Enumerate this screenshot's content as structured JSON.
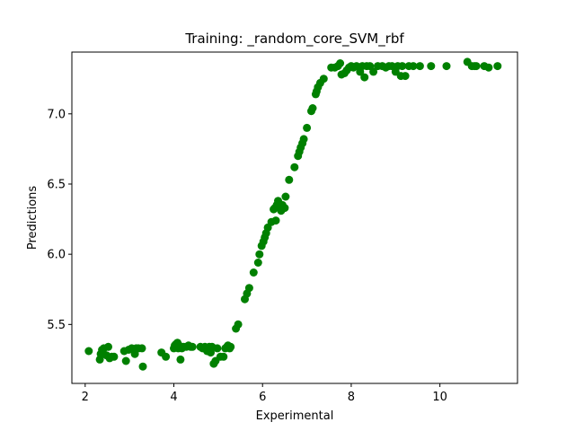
{
  "chart_data": {
    "type": "scatter",
    "title": "Training: _random_core_SVM_rbf",
    "xlabel": "Experimental",
    "ylabel": "Predictions",
    "xlim": [
      1.7,
      11.75
    ],
    "ylim": [
      5.08,
      7.44
    ],
    "xticks": [
      2,
      4,
      6,
      8,
      10
    ],
    "yticks": [
      5.5,
      6.0,
      6.5,
      7.0
    ],
    "xtick_labels": [
      "2",
      "4",
      "6",
      "8",
      "10"
    ],
    "ytick_labels": [
      "5.5",
      "6.0",
      "6.5",
      "7.0"
    ],
    "grid": false,
    "marker_color": "#008000",
    "series": [
      {
        "points": [
          [
            2.08,
            5.31
          ],
          [
            2.33,
            5.25
          ],
          [
            2.35,
            5.29
          ],
          [
            2.38,
            5.32
          ],
          [
            2.42,
            5.33
          ],
          [
            2.48,
            5.28
          ],
          [
            2.52,
            5.34
          ],
          [
            2.55,
            5.26
          ],
          [
            2.6,
            5.27
          ],
          [
            2.65,
            5.27
          ],
          [
            2.88,
            5.31
          ],
          [
            2.92,
            5.24
          ],
          [
            2.98,
            5.32
          ],
          [
            3.05,
            5.33
          ],
          [
            3.12,
            5.29
          ],
          [
            3.15,
            5.33
          ],
          [
            3.2,
            5.33
          ],
          [
            3.28,
            5.33
          ],
          [
            3.3,
            5.2
          ],
          [
            3.72,
            5.3
          ],
          [
            3.82,
            5.27
          ],
          [
            4.0,
            5.33
          ],
          [
            4.02,
            5.35
          ],
          [
            4.05,
            5.36
          ],
          [
            4.08,
            5.37
          ],
          [
            4.1,
            5.33
          ],
          [
            4.12,
            5.35
          ],
          [
            4.15,
            5.25
          ],
          [
            4.18,
            5.33
          ],
          [
            4.22,
            5.34
          ],
          [
            4.28,
            5.34
          ],
          [
            4.33,
            5.35
          ],
          [
            4.38,
            5.34
          ],
          [
            4.42,
            5.34
          ],
          [
            4.6,
            5.34
          ],
          [
            4.65,
            5.33
          ],
          [
            4.7,
            5.34
          ],
          [
            4.75,
            5.31
          ],
          [
            4.8,
            5.34
          ],
          [
            4.83,
            5.3
          ],
          [
            4.86,
            5.34
          ],
          [
            4.9,
            5.22
          ],
          [
            4.94,
            5.24
          ],
          [
            4.98,
            5.33
          ],
          [
            5.05,
            5.27
          ],
          [
            5.12,
            5.27
          ],
          [
            5.16,
            5.33
          ],
          [
            5.2,
            5.34
          ],
          [
            5.22,
            5.35
          ],
          [
            5.26,
            5.33
          ],
          [
            5.28,
            5.34
          ],
          [
            5.4,
            5.47
          ],
          [
            5.45,
            5.5
          ],
          [
            5.6,
            5.68
          ],
          [
            5.65,
            5.72
          ],
          [
            5.7,
            5.76
          ],
          [
            5.8,
            5.87
          ],
          [
            5.9,
            5.94
          ],
          [
            5.93,
            6.0
          ],
          [
            5.98,
            6.06
          ],
          [
            6.02,
            6.09
          ],
          [
            6.05,
            6.12
          ],
          [
            6.08,
            6.15
          ],
          [
            6.12,
            6.19
          ],
          [
            6.2,
            6.23
          ],
          [
            6.25,
            6.32
          ],
          [
            6.28,
            6.33
          ],
          [
            6.3,
            6.24
          ],
          [
            6.32,
            6.35
          ],
          [
            6.35,
            6.38
          ],
          [
            6.38,
            6.36
          ],
          [
            6.42,
            6.31
          ],
          [
            6.45,
            6.35
          ],
          [
            6.5,
            6.33
          ],
          [
            6.52,
            6.41
          ],
          [
            6.6,
            6.53
          ],
          [
            6.72,
            6.62
          ],
          [
            6.8,
            6.7
          ],
          [
            6.83,
            6.73
          ],
          [
            6.86,
            6.76
          ],
          [
            6.9,
            6.79
          ],
          [
            6.93,
            6.82
          ],
          [
            7.0,
            6.9
          ],
          [
            7.1,
            7.02
          ],
          [
            7.13,
            7.04
          ],
          [
            7.2,
            7.14
          ],
          [
            7.22,
            7.16
          ],
          [
            7.25,
            7.19
          ],
          [
            7.3,
            7.22
          ],
          [
            7.38,
            7.25
          ],
          [
            7.55,
            7.33
          ],
          [
            7.63,
            7.33
          ],
          [
            7.7,
            7.34
          ],
          [
            7.75,
            7.36
          ],
          [
            7.78,
            7.28
          ],
          [
            7.85,
            7.29
          ],
          [
            7.9,
            7.31
          ],
          [
            7.95,
            7.33
          ],
          [
            8.0,
            7.34
          ],
          [
            8.05,
            7.33
          ],
          [
            8.12,
            7.34
          ],
          [
            8.2,
            7.3
          ],
          [
            8.25,
            7.34
          ],
          [
            8.3,
            7.26
          ],
          [
            8.35,
            7.34
          ],
          [
            8.42,
            7.34
          ],
          [
            8.5,
            7.3
          ],
          [
            8.6,
            7.34
          ],
          [
            8.7,
            7.34
          ],
          [
            8.78,
            7.33
          ],
          [
            8.85,
            7.34
          ],
          [
            8.92,
            7.34
          ],
          [
            9.0,
            7.3
          ],
          [
            9.05,
            7.34
          ],
          [
            9.12,
            7.27
          ],
          [
            9.15,
            7.34
          ],
          [
            9.22,
            7.27
          ],
          [
            9.3,
            7.34
          ],
          [
            9.4,
            7.34
          ],
          [
            9.55,
            7.34
          ],
          [
            9.8,
            7.34
          ],
          [
            10.15,
            7.34
          ],
          [
            10.62,
            7.37
          ],
          [
            10.72,
            7.34
          ],
          [
            10.78,
            7.34
          ],
          [
            10.82,
            7.34
          ],
          [
            11.0,
            7.34
          ],
          [
            11.1,
            7.33
          ],
          [
            11.3,
            7.34
          ]
        ]
      }
    ]
  }
}
